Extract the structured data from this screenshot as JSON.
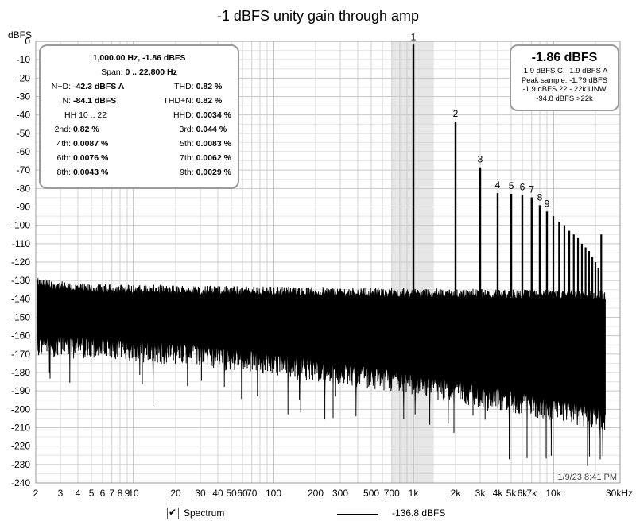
{
  "chart_data": {
    "type": "line",
    "title": "-1 dBFS unity gain through amp",
    "ylabel": "dBFS",
    "xlabel": "",
    "x_scale": "log",
    "xlim": [
      2,
      30000
    ],
    "ylim": [
      -240,
      0
    ],
    "grid": true,
    "y_ticks": [
      "0",
      "-10",
      "-20",
      "-30",
      "-40",
      "-50",
      "-60",
      "-70",
      "-80",
      "-90",
      "-100",
      "-110",
      "-120",
      "-130",
      "-140",
      "-150",
      "-160",
      "-170",
      "-180",
      "-190",
      "-200",
      "-210",
      "-220",
      "-230",
      "-240"
    ],
    "x_ticks": [
      {
        "v": 2,
        "label": "2"
      },
      {
        "v": 3,
        "label": "3"
      },
      {
        "v": 4,
        "label": "4"
      },
      {
        "v": 5,
        "label": "5"
      },
      {
        "v": 6,
        "label": "6"
      },
      {
        "v": 7,
        "label": "7"
      },
      {
        "v": 8,
        "label": "8"
      },
      {
        "v": 9,
        "label": "9"
      },
      {
        "v": 10,
        "label": "10"
      },
      {
        "v": 20,
        "label": "20"
      },
      {
        "v": 30,
        "label": "30"
      },
      {
        "v": 40,
        "label": "40"
      },
      {
        "v": 50,
        "label": "50"
      },
      {
        "v": 60,
        "label": "60"
      },
      {
        "v": 70,
        "label": "70"
      },
      {
        "v": 100,
        "label": "100"
      },
      {
        "v": 200,
        "label": "200"
      },
      {
        "v": 300,
        "label": "300"
      },
      {
        "v": 500,
        "label": "500"
      },
      {
        "v": 700,
        "label": "700"
      },
      {
        "v": 1000,
        "label": "1k"
      },
      {
        "v": 2000,
        "label": "2k"
      },
      {
        "v": 3000,
        "label": "3k"
      },
      {
        "v": 4000,
        "label": "4k"
      },
      {
        "v": 5000,
        "label": "5k"
      },
      {
        "v": 6000,
        "label": "6k"
      },
      {
        "v": 7000,
        "label": "7k"
      },
      {
        "v": 10000,
        "label": "10k"
      },
      {
        "v": 30000,
        "label": "30kHz"
      }
    ],
    "highlight_band": [
      700,
      1400
    ],
    "harmonics": [
      {
        "label": "1",
        "x": 1000,
        "y": -1.86
      },
      {
        "label": "2",
        "x": 2000,
        "y": -43.6
      },
      {
        "label": "3",
        "x": 3000,
        "y": -68.5
      },
      {
        "label": "4",
        "x": 4000,
        "y": -82.5
      },
      {
        "label": "5",
        "x": 5000,
        "y": -82.9
      },
      {
        "label": "6",
        "x": 6000,
        "y": -83.5
      },
      {
        "label": "7",
        "x": 7000,
        "y": -84.8
      },
      {
        "label": "8",
        "x": 8000,
        "y": -89.1
      },
      {
        "label": "9",
        "x": 9000,
        "y": -92.5
      }
    ],
    "extra_harmonics": [
      {
        "x": 10000,
        "y": -95
      },
      {
        "x": 11000,
        "y": -98
      },
      {
        "x": 12000,
        "y": -100
      },
      {
        "x": 13000,
        "y": -103
      },
      {
        "x": 14000,
        "y": -105
      },
      {
        "x": 15000,
        "y": -107
      },
      {
        "x": 16000,
        "y": -110
      },
      {
        "x": 17000,
        "y": -112
      },
      {
        "x": 18000,
        "y": -114
      },
      {
        "x": 19000,
        "y": -117
      },
      {
        "x": 20000,
        "y": -120
      },
      {
        "x": 21000,
        "y": -123
      },
      {
        "x": 22000,
        "y": -105
      }
    ],
    "noise_floor": {
      "top_low_freq": -134,
      "top_high_freq": -138,
      "bottom_low_freq": -160,
      "bottom_high_freq": -200
    },
    "series": [
      {
        "name": "Spectrum",
        "legend_value": "-136.8 dBFS",
        "color": "#000000"
      }
    ],
    "timestamp": "1/9/23 8:41 PM"
  },
  "stats": {
    "header": "1,000.00 Hz, -1.86 dBFS",
    "span_label": "Span:",
    "span_value": "0 .. 22,800 Hz",
    "rows": [
      {
        "left_label": "N+D:",
        "left_value": "-42.3 dBFS A",
        "right_label": "THD:",
        "right_value": "0.82 %"
      },
      {
        "left_label": "N:",
        "left_value": "-84.1 dBFS",
        "right_label": "THD+N:",
        "right_value": "0.82 %"
      },
      {
        "left_label": "",
        "left_value": "HH 10 .. 22",
        "right_label": "HHD:",
        "right_value": "0.0034 %"
      },
      {
        "left_label": "2nd:",
        "left_value": "0.82 %",
        "right_label": "3rd:",
        "right_value": "0.044 %"
      },
      {
        "left_label": "4th:",
        "left_value": "0.0087 %",
        "right_label": "5th:",
        "right_value": "0.0083 %"
      },
      {
        "left_label": "6th:",
        "left_value": "0.0076 %",
        "right_label": "7th:",
        "right_value": "0.0062 %"
      },
      {
        "left_label": "8th:",
        "left_value": "0.0043 %",
        "right_label": "9th:",
        "right_value": "0.0029 %"
      }
    ]
  },
  "level": {
    "main": "-1.86 dBFS",
    "lines": [
      "-1.9 dBFS C, -1.9 dBFS A",
      "Peak sample: -1.79 dBFS",
      "-1.9 dBFS 22 - 22k UNW",
      "-94.8 dBFS >22k"
    ]
  },
  "legend": {
    "checkbox_label": "Spectrum",
    "value": "-136.8 dBFS"
  }
}
